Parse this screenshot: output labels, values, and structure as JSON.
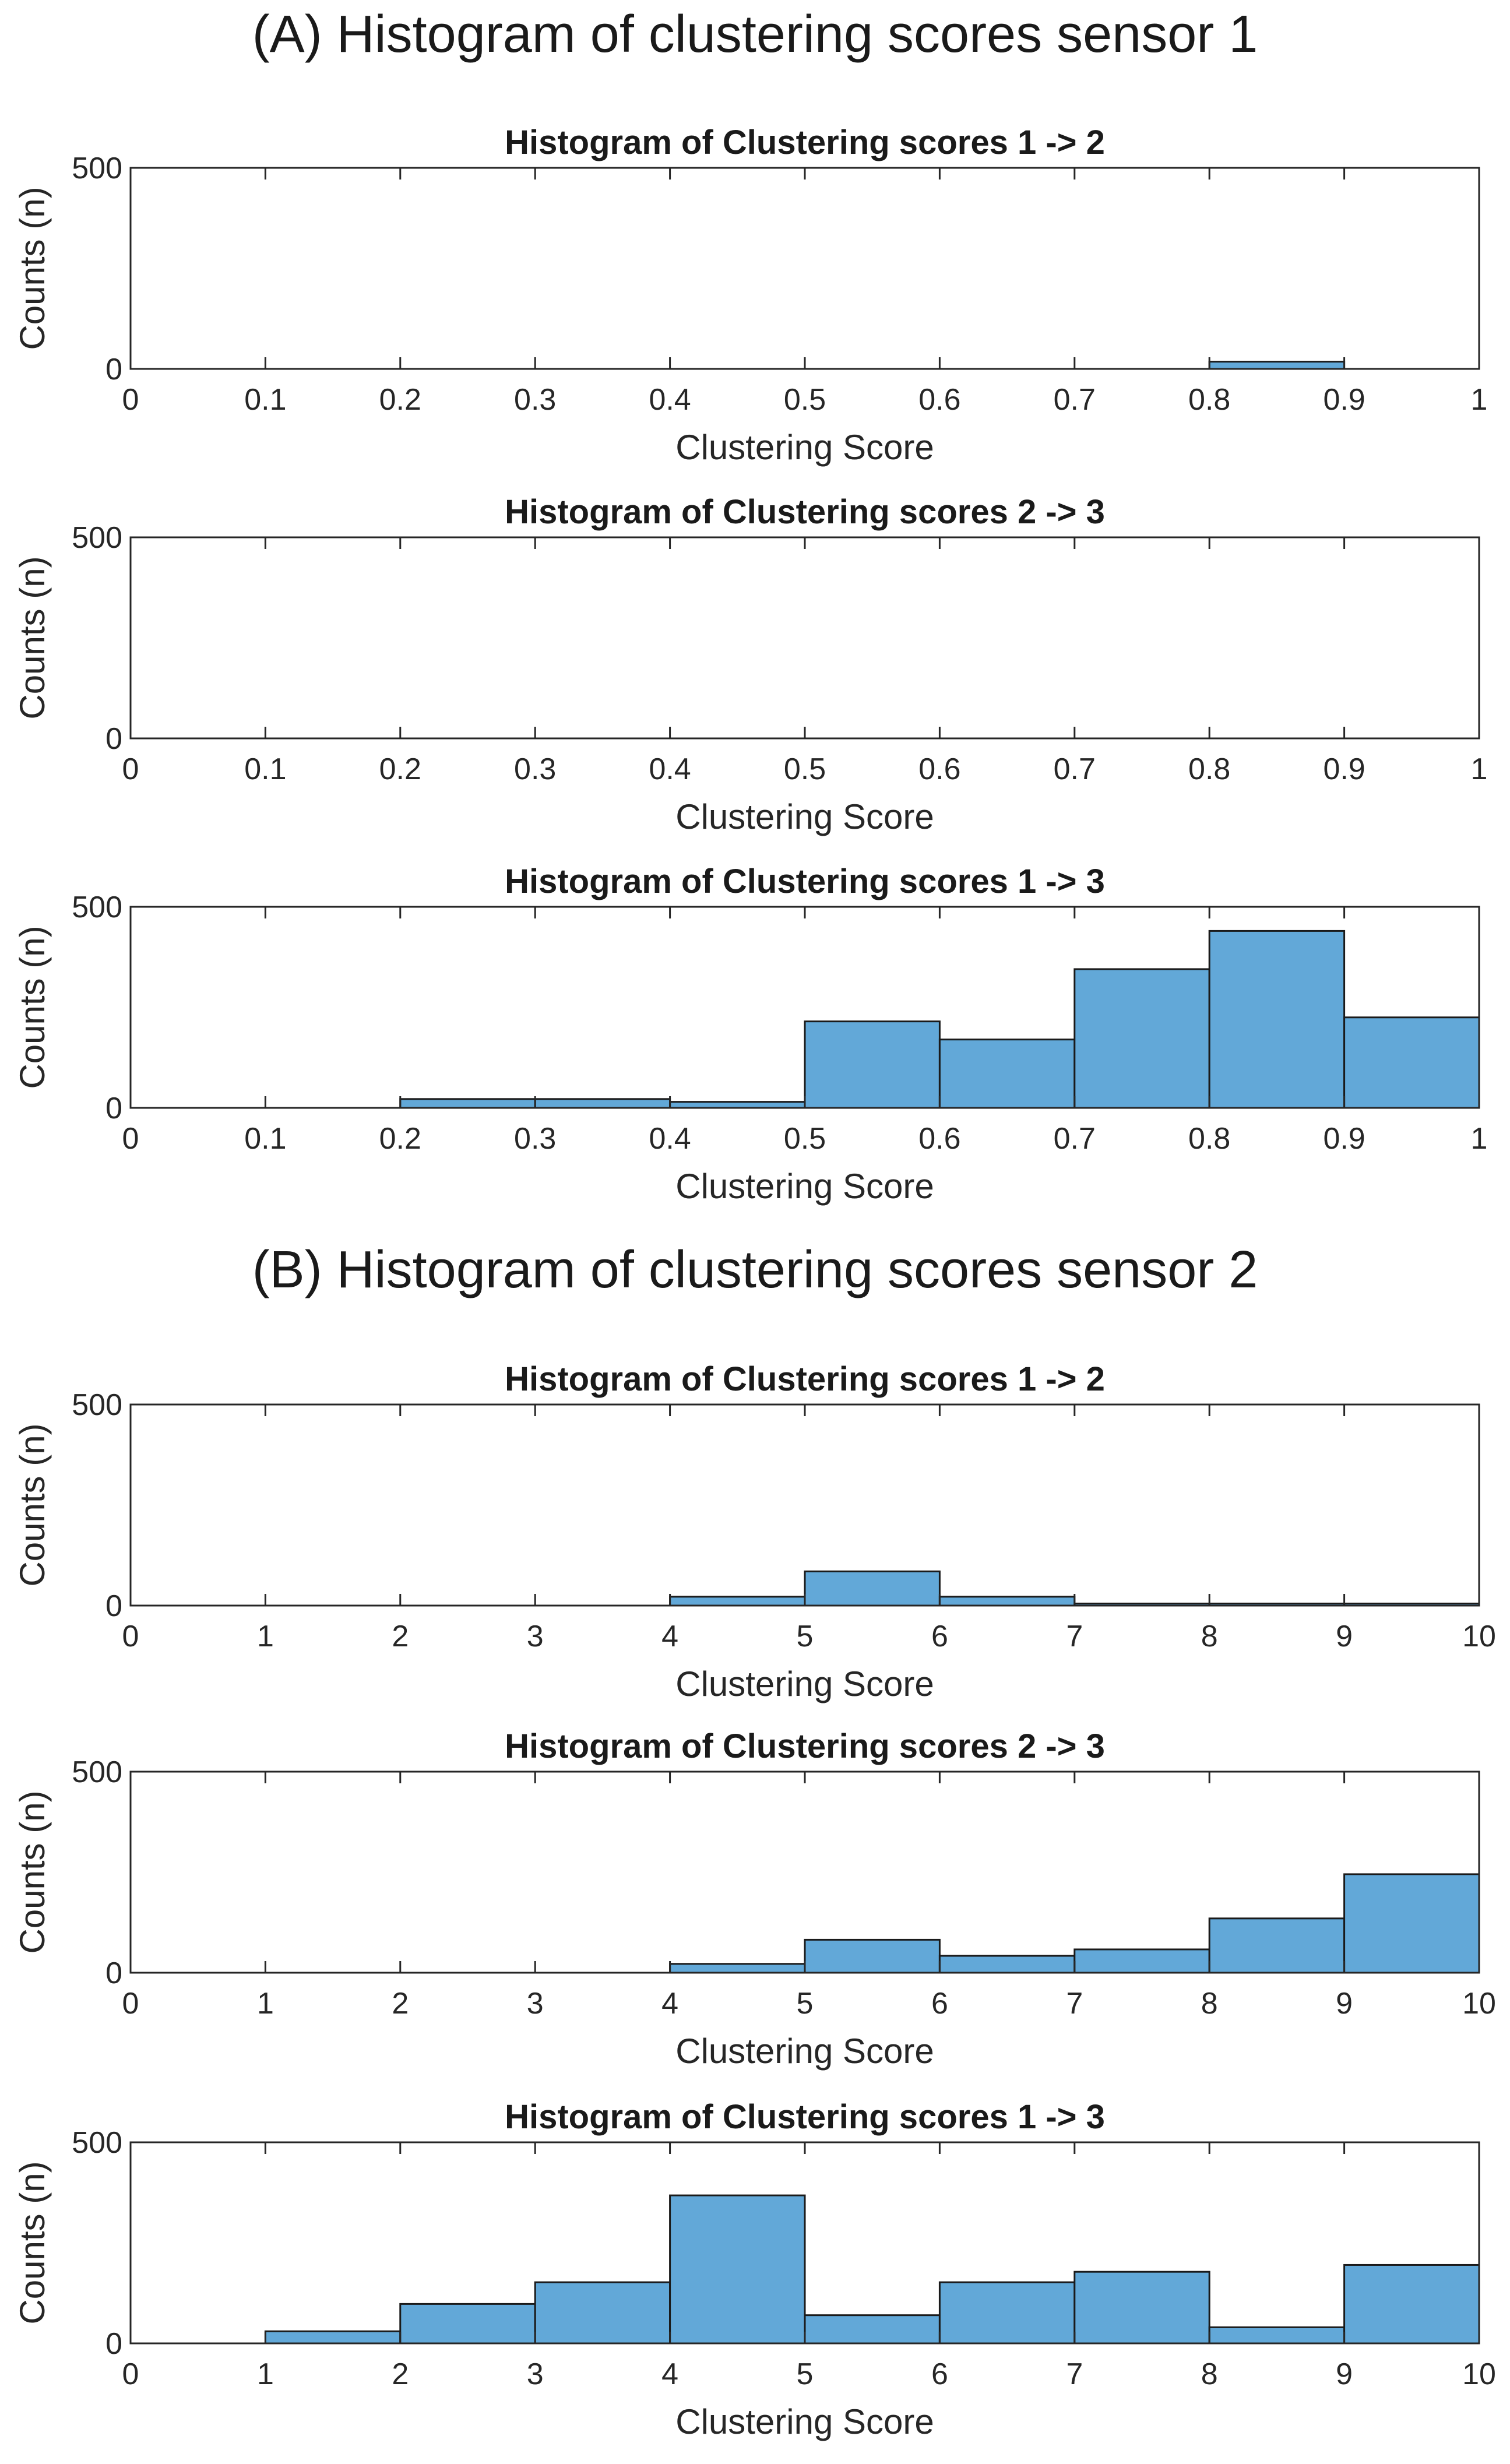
{
  "figure": {
    "section_a_title": "(A) Histogram of clustering scores sensor 1",
    "section_b_title": "(B) Histogram of clustering scores sensor 2"
  },
  "chart_data": [
    {
      "type": "bar",
      "section": "A",
      "title": "Histogram of Clustering scores 1 -> 2",
      "xlabel": "Clustering Score",
      "ylabel": "Counts (n)",
      "xlim": [
        0,
        1
      ],
      "ylim": [
        0,
        500
      ],
      "xticks": [
        "0",
        "0.1",
        "0.2",
        "0.3",
        "0.4",
        "0.5",
        "0.6",
        "0.7",
        "0.8",
        "0.9",
        "1"
      ],
      "yticks": [
        "0",
        "500"
      ],
      "bin_edges": [
        0,
        0.1,
        0.2,
        0.3,
        0.4,
        0.5,
        0.6,
        0.7,
        0.8,
        0.9,
        1.0
      ],
      "values": [
        0,
        0,
        0,
        0,
        0,
        0,
        0,
        0,
        18,
        0
      ]
    },
    {
      "type": "bar",
      "section": "A",
      "title": "Histogram of Clustering scores 2 -> 3",
      "xlabel": "Clustering Score",
      "ylabel": "Counts (n)",
      "xlim": [
        0,
        1
      ],
      "ylim": [
        0,
        500
      ],
      "xticks": [
        "0",
        "0.1",
        "0.2",
        "0.3",
        "0.4",
        "0.5",
        "0.6",
        "0.7",
        "0.8",
        "0.9",
        "1"
      ],
      "yticks": [
        "0",
        "500"
      ],
      "bin_edges": [
        0,
        0.1,
        0.2,
        0.3,
        0.4,
        0.5,
        0.6,
        0.7,
        0.8,
        0.9,
        1.0
      ],
      "values": [
        0,
        0,
        0,
        0,
        0,
        0,
        0,
        0,
        0,
        0
      ]
    },
    {
      "type": "bar",
      "section": "A",
      "title": "Histogram of Clustering scores 1 -> 3",
      "xlabel": "Clustering Score",
      "ylabel": "Counts (n)",
      "xlim": [
        0,
        1
      ],
      "ylim": [
        0,
        500
      ],
      "xticks": [
        "0",
        "0.1",
        "0.2",
        "0.3",
        "0.4",
        "0.5",
        "0.6",
        "0.7",
        "0.8",
        "0.9",
        "1"
      ],
      "yticks": [
        "0",
        "500"
      ],
      "bin_edges": [
        0,
        0.1,
        0.2,
        0.3,
        0.4,
        0.5,
        0.6,
        0.7,
        0.8,
        0.9,
        1.0
      ],
      "values": [
        0,
        0,
        22,
        22,
        15,
        215,
        170,
        345,
        440,
        225
      ]
    },
    {
      "type": "bar",
      "section": "B",
      "title": "Histogram of Clustering scores 1 -> 2",
      "xlabel": "Clustering Score",
      "ylabel": "Counts (n)",
      "xlim": [
        0,
        10
      ],
      "ylim": [
        0,
        500
      ],
      "xticks": [
        "0",
        "1",
        "2",
        "3",
        "4",
        "5",
        "6",
        "7",
        "8",
        "9",
        "10"
      ],
      "yticks": [
        "0",
        "500"
      ],
      "bin_edges": [
        0,
        1,
        2,
        3,
        4,
        5,
        6,
        7,
        8,
        9,
        10
      ],
      "values": [
        0,
        0,
        0,
        0,
        22,
        85,
        22,
        5,
        5,
        5
      ]
    },
    {
      "type": "bar",
      "section": "B",
      "title": "Histogram of Clustering scores 2 -> 3",
      "xlabel": "Clustering Score",
      "ylabel": "Counts (n)",
      "xlim": [
        0,
        10
      ],
      "ylim": [
        0,
        500
      ],
      "xticks": [
        "0",
        "1",
        "2",
        "3",
        "4",
        "5",
        "6",
        "7",
        "8",
        "9",
        "10"
      ],
      "yticks": [
        "0",
        "500"
      ],
      "bin_edges": [
        0,
        1,
        2,
        3,
        4,
        5,
        6,
        7,
        8,
        9,
        10
      ],
      "values": [
        0,
        0,
        0,
        0,
        22,
        82,
        42,
        58,
        135,
        245
      ]
    },
    {
      "type": "bar",
      "section": "B",
      "title": "Histogram of Clustering scores 1 -> 3",
      "xlabel": "Clustering Score",
      "ylabel": "Counts (n)",
      "xlim": [
        0,
        10
      ],
      "ylim": [
        0,
        500
      ],
      "xticks": [
        "0",
        "1",
        "2",
        "3",
        "4",
        "5",
        "6",
        "7",
        "8",
        "9",
        "10"
      ],
      "yticks": [
        "0",
        "500"
      ],
      "bin_edges": [
        0,
        1,
        2,
        3,
        4,
        5,
        6,
        7,
        8,
        9,
        10
      ],
      "values": [
        0,
        30,
        98,
        152,
        368,
        70,
        152,
        178,
        40,
        195
      ]
    }
  ]
}
